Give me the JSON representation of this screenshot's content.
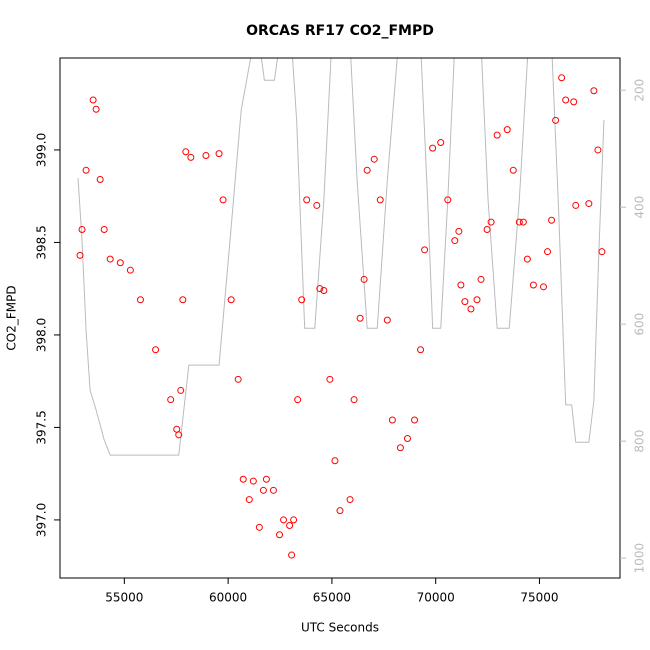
{
  "chart_data": {
    "type": "scatter",
    "title": "ORCAS RF17 CO2_FMPD",
    "x_label": "UTC Seconds",
    "y_label": "CO2_FMPD",
    "xlim": [
      51900,
      78880
    ],
    "xticks": [
      55000,
      60000,
      65000,
      70000,
      75000
    ],
    "ylim": [
      396.686,
      399.497
    ],
    "yticks": [
      {
        "value": 397,
        "label": "397.0"
      },
      397.5,
      {
        "value": 398,
        "label": "398.0"
      },
      398.5,
      {
        "value": 399,
        "label": "399.0"
      }
    ],
    "y2lim": [
      145,
      1034
    ],
    "y2_reversed": true,
    "y2ticks": [
      200,
      400,
      600,
      800,
      1000
    ],
    "y2_color": "#bbbbbb",
    "series": [
      {
        "type": "line",
        "axis": "y2",
        "color": "#bbbbbb",
        "x": [
          52767,
          52961,
          53155,
          53350,
          53641,
          54029,
          54320,
          57621,
          58107,
          59563,
          60049,
          60631,
          61214,
          61505,
          61748,
          62233,
          62476,
          63058,
          63301,
          63689,
          64175,
          64612,
          64990,
          65874,
          66214,
          66699,
          67184,
          67670,
          68204,
          69272,
          69612,
          69854,
          70243,
          70583,
          70922,
          72184,
          72524,
          72961,
          73544,
          74029,
          74466,
          75583,
          75922,
          76262,
          76553,
          76748,
          77379,
          77621,
          77864,
          78107
        ],
        "values": [
          350,
          456,
          610,
          713,
          747,
          798,
          824,
          824,
          670,
          670,
          474,
          234,
          120,
          120,
          183,
          183,
          120,
          120,
          251,
          607,
          607,
          388,
          120,
          120,
          354,
          607,
          607,
          354,
          120,
          120,
          388,
          607,
          607,
          388,
          120,
          120,
          388,
          607,
          607,
          388,
          120,
          120,
          405,
          738,
          738,
          802,
          802,
          731,
          474,
          251
        ]
      },
      {
        "type": "scatter",
        "color": "#ff0000",
        "x": [
          52864,
          52961,
          53155,
          53495,
          53641,
          53835,
          54029,
          54320,
          54806,
          55291,
          55777,
          56505,
          57233,
          57524,
          57621,
          57718,
          57816,
          57961,
          58204,
          58932,
          59563,
          59757,
          60146,
          60485,
          60728,
          61019,
          61214,
          61505,
          61699,
          61845,
          62184,
          62476,
          62670,
          62961,
          63058,
          63155,
          63350,
          63544,
          63786,
          64272,
          64417,
          64612,
          64903,
          65146,
          65388,
          65874,
          66068,
          66359,
          66553,
          66699,
          67039,
          67330,
          67670,
          67913,
          68301,
          68641,
          68981,
          69272,
          69466,
          69854,
          70243,
          70583,
          70922,
          71117,
          71214,
          71408,
          71699,
          71990,
          72184,
          72476,
          72670,
          72961,
          73447,
          73738,
          74029,
          74223,
          74417,
          74709,
          75194,
          75388,
          75583,
          75777,
          76068,
          76262,
          76650,
          76748,
          77379,
          77621,
          77816,
          78010
        ],
        "values": [
          398.43,
          398.57,
          398.89,
          399.27,
          399.22,
          398.84,
          398.57,
          398.41,
          398.39,
          398.35,
          398.19,
          397.92,
          397.65,
          397.49,
          397.46,
          397.7,
          398.19,
          398.99,
          398.96,
          398.97,
          398.98,
          398.73,
          398.19,
          397.76,
          397.22,
          397.11,
          397.21,
          396.96,
          397.16,
          397.22,
          397.16,
          396.92,
          397.0,
          396.97,
          396.81,
          397.0,
          397.65,
          398.19,
          398.73,
          398.7,
          398.25,
          398.24,
          397.76,
          397.32,
          397.05,
          397.11,
          397.65,
          398.09,
          398.3,
          398.89,
          398.95,
          398.73,
          398.08,
          397.54,
          397.39,
          397.44,
          397.54,
          397.92,
          398.46,
          399.01,
          399.04,
          398.73,
          398.51,
          398.56,
          398.27,
          398.18,
          398.14,
          398.19,
          398.3,
          398.57,
          398.61,
          399.08,
          399.11,
          398.89,
          398.61,
          398.61,
          398.41,
          398.27,
          398.26,
          398.45,
          398.62,
          399.16,
          399.39,
          399.27,
          399.26,
          398.7,
          398.71,
          399.32,
          399.0,
          398.45
        ]
      }
    ]
  }
}
